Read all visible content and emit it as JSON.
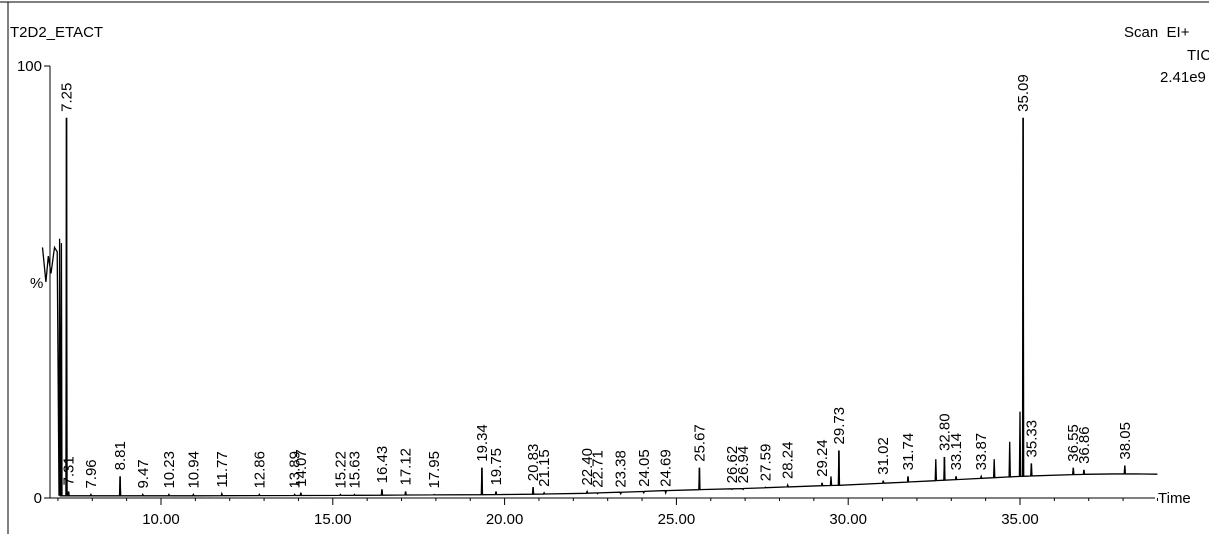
{
  "header": {
    "sample_name": "T2D2_ETACT",
    "scan_mode": "Scan  EI+",
    "trace": "TIC",
    "max_intensity": "2.41e9"
  },
  "chart_data": {
    "type": "line",
    "title": "",
    "xlabel": "Time",
    "ylabel": "%",
    "xlim": [
      6.5,
      39.2
    ],
    "ylim": [
      0,
      100
    ],
    "x_ticks": [
      10,
      15,
      20,
      25,
      30,
      35
    ],
    "x_tick_labels": [
      "10.00",
      "15.00",
      "20.00",
      "25.00",
      "30.00",
      "35.00"
    ],
    "y_tick_labels": [
      "0",
      "%",
      "100"
    ],
    "grid": false,
    "line_color": "#000000",
    "baseline": [
      [
        6.5,
        0.5
      ],
      [
        10,
        0.5
      ],
      [
        15,
        0.6
      ],
      [
        20,
        0.8
      ],
      [
        22,
        1.0
      ],
      [
        24,
        1.5
      ],
      [
        25,
        1.8
      ],
      [
        26,
        2.0
      ],
      [
        27,
        2.2
      ],
      [
        28,
        2.5
      ],
      [
        29,
        2.8
      ],
      [
        30,
        3.0
      ],
      [
        31,
        3.4
      ],
      [
        32,
        3.8
      ],
      [
        33,
        4.2
      ],
      [
        34,
        4.6
      ],
      [
        35,
        5.0
      ],
      [
        36,
        5.3
      ],
      [
        37,
        5.5
      ],
      [
        38,
        5.6
      ],
      [
        39,
        5.5
      ]
    ],
    "peaks": [
      {
        "rt": 7.25,
        "label": "7.25",
        "height": 88
      },
      {
        "rt": 7.31,
        "label": "7.31",
        "height": 1.5
      },
      {
        "rt": 7.96,
        "label": "7.96",
        "height": 0.8
      },
      {
        "rt": 8.81,
        "label": "8.81",
        "height": 5
      },
      {
        "rt": 9.47,
        "label": "9.47",
        "height": 0.8
      },
      {
        "rt": 10.23,
        "label": "10.23",
        "height": 0.8
      },
      {
        "rt": 10.94,
        "label": "10.94",
        "height": 0.8
      },
      {
        "rt": 11.77,
        "label": "11.77",
        "height": 1.0
      },
      {
        "rt": 12.86,
        "label": "12.86",
        "height": 0.8
      },
      {
        "rt": 13.89,
        "label": "13.89",
        "height": 0.8
      },
      {
        "rt": 14.07,
        "label": "14.07",
        "height": 1.2
      },
      {
        "rt": 15.22,
        "label": "15.22",
        "height": 0.8
      },
      {
        "rt": 15.63,
        "label": "15.63",
        "height": 0.8
      },
      {
        "rt": 16.43,
        "label": "16.43",
        "height": 2.0
      },
      {
        "rt": 17.12,
        "label": "17.12",
        "height": 1.5
      },
      {
        "rt": 17.95,
        "label": "17.95",
        "height": 0.8
      },
      {
        "rt": 19.34,
        "label": "19.34",
        "height": 7
      },
      {
        "rt": 19.75,
        "label": "19.75",
        "height": 1.5
      },
      {
        "rt": 20.83,
        "label": "20.83",
        "height": 2.5
      },
      {
        "rt": 21.15,
        "label": "21.15",
        "height": 1.2
      },
      {
        "rt": 22.4,
        "label": "22.40",
        "height": 1.5
      },
      {
        "rt": 22.71,
        "label": "22.71",
        "height": 1.0
      },
      {
        "rt": 23.38,
        "label": "23.38",
        "height": 1.0
      },
      {
        "rt": 24.05,
        "label": "24.05",
        "height": 1.2
      },
      {
        "rt": 24.69,
        "label": "24.69",
        "height": 1.2
      },
      {
        "rt": 25.67,
        "label": "25.67",
        "height": 7
      },
      {
        "rt": 26.62,
        "label": "26.62",
        "height": 2.0
      },
      {
        "rt": 26.94,
        "label": "26.94",
        "height": 2.0
      },
      {
        "rt": 27.59,
        "label": "27.59",
        "height": 2.5
      },
      {
        "rt": 28.24,
        "label": "28.24",
        "height": 3
      },
      {
        "rt": 29.24,
        "label": "29.24",
        "height": 3.5
      },
      {
        "rt": 29.73,
        "label": "29.73",
        "height": 11
      },
      {
        "rt": 31.02,
        "label": "31.02",
        "height": 4
      },
      {
        "rt": 31.74,
        "label": "31.74",
        "height": 5
      },
      {
        "rt": 32.8,
        "label": "32.80",
        "height": 9.5
      },
      {
        "rt": 33.14,
        "label": "33.14",
        "height": 5
      },
      {
        "rt": 33.87,
        "label": "33.87",
        "height": 5
      },
      {
        "rt": 35.09,
        "label": "35.09",
        "height": 88
      },
      {
        "rt": 35.33,
        "label": "35.33",
        "height": 8
      },
      {
        "rt": 36.55,
        "label": "36.55",
        "height": 7
      },
      {
        "rt": 36.86,
        "label": "36.86",
        "height": 6.5
      },
      {
        "rt": 38.05,
        "label": "38.05",
        "height": 7.5
      }
    ],
    "unlabeled_peaks": [
      {
        "rt": 7.05,
        "height": 60
      },
      {
        "rt": 7.1,
        "height": 59
      },
      {
        "rt": 29.5,
        "height": 5
      },
      {
        "rt": 32.55,
        "height": 9
      },
      {
        "rt": 34.25,
        "height": 9
      },
      {
        "rt": 34.7,
        "height": 13
      },
      {
        "rt": 35.0,
        "height": 20
      }
    ]
  }
}
